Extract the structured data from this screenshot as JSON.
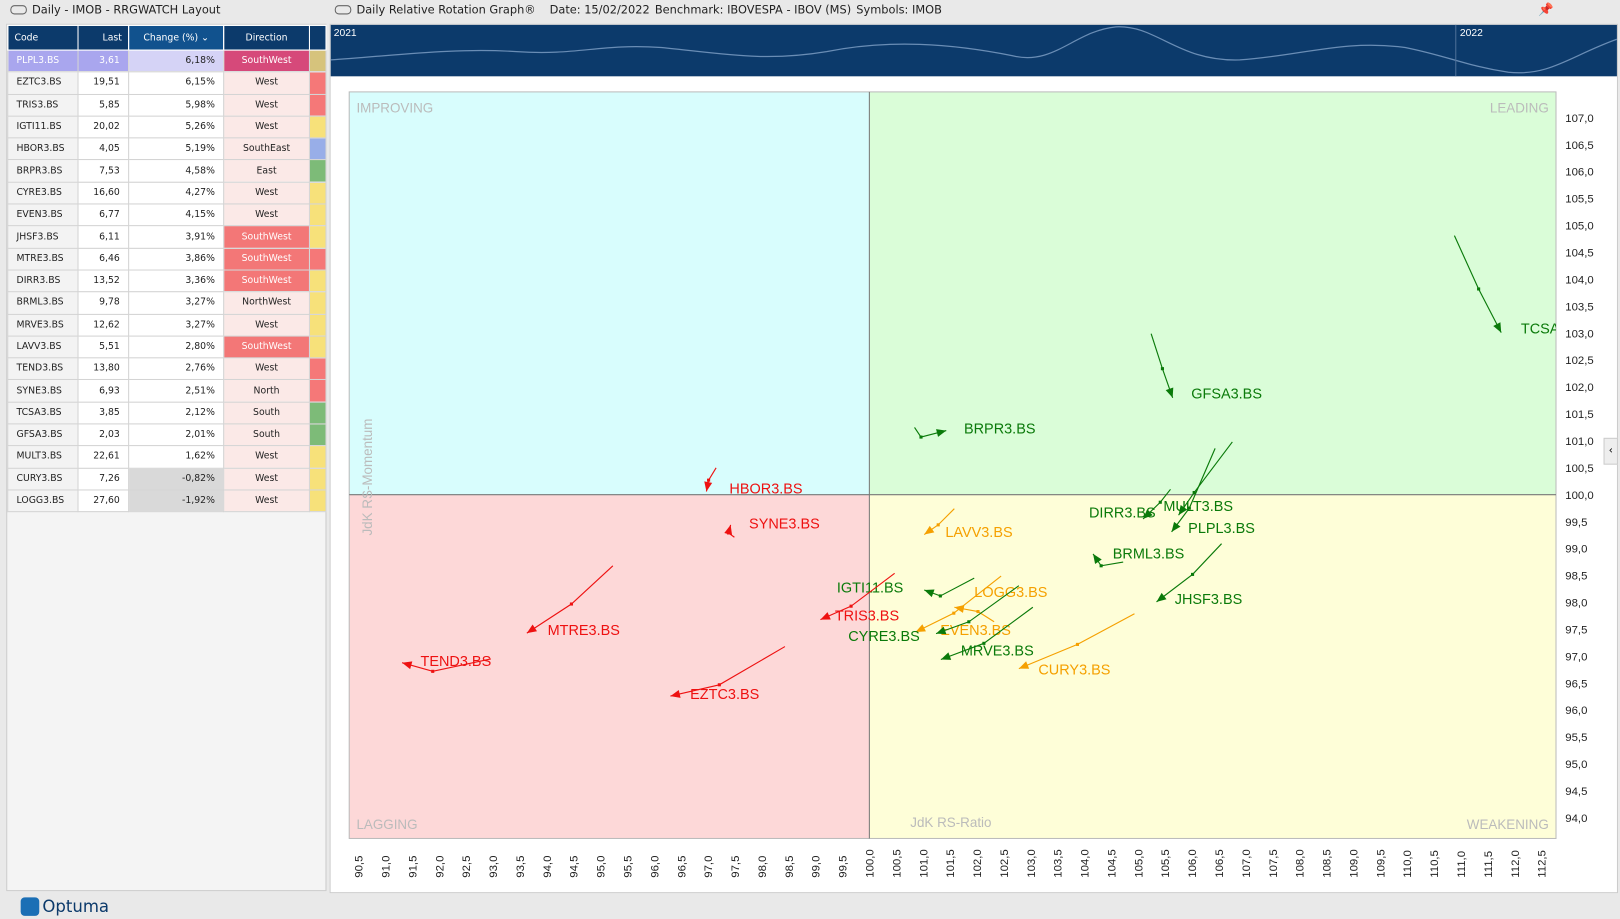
{
  "left_panel": {
    "title": "Daily - IMOB - RRGWATCH Layout",
    "columns": [
      "Code",
      "Last",
      "Change (%)",
      "Direction"
    ],
    "rows": [
      {
        "code": "PLPL3.BS",
        "last": "3,61",
        "change": "6,18%",
        "direction": "SouthWest",
        "strip": "#d6c37c",
        "selected": true
      },
      {
        "code": "EZTC3.BS",
        "last": "19,51",
        "change": "6,15%",
        "direction": "West",
        "strip": "#f57878"
      },
      {
        "code": "TRIS3.BS",
        "last": "5,85",
        "change": "5,98%",
        "direction": "West",
        "strip": "#f57878"
      },
      {
        "code": "IGTI11.BS",
        "last": "20,02",
        "change": "5,26%",
        "direction": "West",
        "strip": "#f7e17a"
      },
      {
        "code": "HBOR3.BS",
        "last": "4,05",
        "change": "5,19%",
        "direction": "SouthEast",
        "strip": "#98aee8"
      },
      {
        "code": "BRPR3.BS",
        "last": "7,53",
        "change": "4,58%",
        "direction": "East",
        "strip": "#7dbb78"
      },
      {
        "code": "CYRE3.BS",
        "last": "16,60",
        "change": "4,27%",
        "direction": "West",
        "strip": "#f7e17a"
      },
      {
        "code": "EVEN3.BS",
        "last": "6,77",
        "change": "4,15%",
        "direction": "West",
        "strip": "#f7e17a"
      },
      {
        "code": "JHSF3.BS",
        "last": "6,11",
        "change": "3,91%",
        "direction": "SouthWest",
        "strip": "#f7e17a"
      },
      {
        "code": "MTRE3.BS",
        "last": "6,46",
        "change": "3,86%",
        "direction": "SouthWest",
        "strip": "#f57878"
      },
      {
        "code": "DIRR3.BS",
        "last": "13,52",
        "change": "3,36%",
        "direction": "SouthWest",
        "strip": "#f7e17a"
      },
      {
        "code": "BRML3.BS",
        "last": "9,78",
        "change": "3,27%",
        "direction": "NorthWest",
        "strip": "#f7e17a"
      },
      {
        "code": "MRVE3.BS",
        "last": "12,62",
        "change": "3,27%",
        "direction": "West",
        "strip": "#f7e17a"
      },
      {
        "code": "LAVV3.BS",
        "last": "5,51",
        "change": "2,80%",
        "direction": "SouthWest",
        "strip": "#f7e17a"
      },
      {
        "code": "TEND3.BS",
        "last": "13,80",
        "change": "2,76%",
        "direction": "West",
        "strip": "#f57878"
      },
      {
        "code": "SYNE3.BS",
        "last": "6,93",
        "change": "2,51%",
        "direction": "North",
        "strip": "#f57878"
      },
      {
        "code": "TCSA3.BS",
        "last": "3,85",
        "change": "2,12%",
        "direction": "South",
        "strip": "#7dbb78"
      },
      {
        "code": "GFSA3.BS",
        "last": "2,03",
        "change": "2,01%",
        "direction": "South",
        "strip": "#7dbb78"
      },
      {
        "code": "MULT3.BS",
        "last": "22,61",
        "change": "1,62%",
        "direction": "West",
        "strip": "#f7e17a"
      },
      {
        "code": "CURY3.BS",
        "last": "7,26",
        "change": "-0,82%",
        "direction": "West",
        "strip": "#f7e17a"
      },
      {
        "code": "LOGG3.BS",
        "last": "27,60",
        "change": "-1,92%",
        "direction": "West",
        "strip": "#f7e17a"
      }
    ]
  },
  "right_panel": {
    "title": "Daily Relative Rotation Graph®",
    "date": "Date: 15/02/2022",
    "benchmark": "Benchmark: IBOVESPA - IBOV (MS)",
    "symbols": "Symbols: IMOB"
  },
  "timeline": {
    "labels": [
      "2021",
      "2022"
    ]
  },
  "brand": "Optuma",
  "chart_data": {
    "type": "scatter",
    "xlabel": "JdK RS-Ratio",
    "ylabel": "JdK RS-Momentum",
    "xlim": [
      90.5,
      112.5
    ],
    "ylim": [
      94.0,
      107.0
    ],
    "x_ticks": [
      "90,5",
      "91,0",
      "91,5",
      "92,0",
      "92,5",
      "93,0",
      "93,5",
      "94,0",
      "94,5",
      "95,0",
      "95,5",
      "96,0",
      "96,5",
      "97,0",
      "97,5",
      "98,0",
      "98,5",
      "99,0",
      "99,5",
      "100,0",
      "100,5",
      "101,0",
      "101,5",
      "102,0",
      "102,5",
      "103,0",
      "103,5",
      "104,0",
      "104,5",
      "105,0",
      "105,5",
      "106,0",
      "106,5",
      "107,0",
      "107,5",
      "108,0",
      "108,5",
      "109,0",
      "109,5",
      "110,0",
      "110,5",
      "111,0",
      "111,5",
      "112,0",
      "112,5"
    ],
    "y_ticks": [
      "107,0",
      "106,5",
      "106,0",
      "105,5",
      "105,0",
      "104,5",
      "104,0",
      "103,5",
      "103,0",
      "102,5",
      "102,0",
      "101,5",
      "101,0",
      "100,5",
      "100,0",
      "99,5",
      "99,0",
      "98,5",
      "98,0",
      "97,5",
      "97,0",
      "96,5",
      "96,0",
      "95,5",
      "95,0",
      "94,5",
      "94,0"
    ],
    "quadrants": {
      "improving": "IMPROVING",
      "leading": "LEADING",
      "lagging": "LAGGING",
      "weakening": "WEAKENING"
    },
    "quadrant_colors": {
      "improving": "#d8fdfd",
      "leading": "#dafdd8",
      "lagging": "#fdd8d8",
      "weakening": "#fefed8"
    },
    "series": [
      {
        "name": "TCSA",
        "color": "#0a7a0a",
        "x": [
          110.88,
          111.33,
          111.75
        ],
        "y": [
          104.81,
          103.82,
          103.01
        ]
      },
      {
        "name": "GFSA3.BS",
        "color": "#0a7a0a",
        "x": [
          105.24,
          105.45,
          105.64
        ],
        "y": [
          102.99,
          102.34,
          101.8
        ]
      },
      {
        "name": "BRPR3.BS",
        "color": "#0a7a0a",
        "x": [
          100.84,
          100.96,
          101.43
        ],
        "y": [
          101.25,
          101.07,
          101.19
        ]
      },
      {
        "name": "HBOR3.BS",
        "color": "#ee1111",
        "x": [
          97.15,
          97.01,
          96.97
        ],
        "y": [
          100.5,
          100.27,
          100.06
        ]
      },
      {
        "name": "SYNE3.BS",
        "color": "#ee1111",
        "x": [
          97.49,
          97.38,
          97.42
        ],
        "y": [
          99.21,
          99.29,
          99.44
        ]
      },
      {
        "name": "DIRR3.BS",
        "color": "#0a7a0a",
        "x": [
          105.6,
          105.41,
          105.09
        ],
        "y": [
          100.1,
          99.86,
          99.55
        ]
      },
      {
        "name": "MULT3.BS",
        "color": "#0a7a0a",
        "x": [
          106.75,
          106.04,
          105.75
        ],
        "y": [
          100.98,
          100.04,
          99.62
        ]
      },
      {
        "name": "PLPL3.BS",
        "color": "#0a7a0a",
        "x": [
          106.43,
          105.95,
          105.62
        ],
        "y": [
          100.86,
          99.75,
          99.31
        ]
      },
      {
        "name": "BRML3.BS",
        "color": "#0a7a0a",
        "x": [
          104.72,
          104.31,
          104.16
        ],
        "y": [
          98.75,
          98.68,
          98.9
        ]
      },
      {
        "name": "JHSF3.BS",
        "color": "#0a7a0a",
        "x": [
          106.55,
          106.01,
          105.34
        ],
        "y": [
          99.09,
          98.52,
          98.01
        ]
      },
      {
        "name": "LAVV3.BS",
        "color": "#f5a000",
        "x": [
          101.58,
          101.28,
          101.02
        ],
        "y": [
          99.74,
          99.44,
          99.26
        ]
      },
      {
        "name": "IGTI11.BS",
        "color": "#0a7a0a",
        "x": [
          101.95,
          101.32,
          101.02
        ],
        "y": [
          98.45,
          98.12,
          98.23
        ]
      },
      {
        "name": "LOGG3.BS",
        "color": "#f5a000",
        "x": [
          102.32,
          102.02,
          101.58
        ],
        "y": [
          97.64,
          97.83,
          97.91
        ]
      },
      {
        "name": "EVEN3.BS",
        "color": "#f5a000",
        "x": [
          102.45,
          101.57,
          100.86
        ],
        "y": [
          98.49,
          97.8,
          97.45
        ]
      },
      {
        "name": "CYRE3.BS",
        "color": "#0a7a0a",
        "x": [
          102.78,
          101.85,
          101.24
        ],
        "y": [
          98.31,
          97.64,
          97.42
        ]
      },
      {
        "name": "MRVE3.BS",
        "color": "#0a7a0a",
        "x": [
          103.04,
          102.13,
          101.33
        ],
        "y": [
          97.91,
          97.24,
          96.94
        ]
      },
      {
        "name": "TRIS3.BS",
        "color": "#ee1111",
        "x": [
          100.47,
          99.66,
          99.09
        ],
        "y": [
          98.54,
          97.93,
          97.68
        ]
      },
      {
        "name": "CURY3.BS",
        "color": "#f5a000",
        "x": [
          104.93,
          103.87,
          102.78
        ],
        "y": [
          97.79,
          97.22,
          96.77
        ]
      },
      {
        "name": "EZTC3.BS",
        "color": "#ee1111",
        "x": [
          98.43,
          97.21,
          96.3
        ],
        "y": [
          97.18,
          96.47,
          96.26
        ]
      },
      {
        "name": "MTRE3.BS",
        "color": "#ee1111",
        "x": [
          95.23,
          94.46,
          93.63
        ],
        "y": [
          98.68,
          97.97,
          97.43
        ]
      },
      {
        "name": "TEND3.BS",
        "color": "#ee1111",
        "x": [
          92.96,
          91.88,
          91.31
        ],
        "y": [
          96.95,
          96.72,
          96.88
        ]
      }
    ]
  }
}
